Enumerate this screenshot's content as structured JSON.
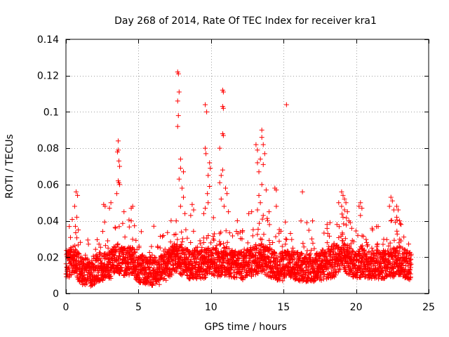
{
  "chart_data": {
    "type": "scatter",
    "title": "Day 268 of 2014, Rate Of TEC Index for receiver kra1",
    "xlabel": "GPS time / hours",
    "ylabel": "ROTI / TECUs",
    "xlim": [
      0,
      25
    ],
    "ylim": [
      0,
      0.14
    ],
    "xticks": [
      0,
      5,
      10,
      15,
      20,
      25
    ],
    "xtick_labels": [
      "0",
      "5",
      "10",
      "15",
      "20",
      "25"
    ],
    "yticks": [
      0,
      0.02,
      0.04,
      0.06,
      0.08,
      0.1,
      0.12,
      0.14
    ],
    "ytick_labels": [
      "0",
      "0.02",
      "0.04",
      "0.06",
      "0.08",
      "0.1",
      "0.12",
      "0.14"
    ],
    "grid": true,
    "marker": "+",
    "series": [
      {
        "name": "ROTI",
        "color": "#ff0000",
        "baseline": [
          [
            0.0,
            0.016
          ],
          [
            0.5,
            0.018
          ],
          [
            1.0,
            0.013
          ],
          [
            1.5,
            0.011
          ],
          [
            2.0,
            0.013
          ],
          [
            2.5,
            0.015
          ],
          [
            3.0,
            0.015
          ],
          [
            3.5,
            0.02
          ],
          [
            4.0,
            0.017
          ],
          [
            4.5,
            0.018
          ],
          [
            5.0,
            0.014
          ],
          [
            5.5,
            0.013
          ],
          [
            6.0,
            0.012
          ],
          [
            6.5,
            0.013
          ],
          [
            7.0,
            0.015
          ],
          [
            7.5,
            0.02
          ],
          [
            8.0,
            0.018
          ],
          [
            8.5,
            0.016
          ],
          [
            9.0,
            0.016
          ],
          [
            9.5,
            0.016
          ],
          [
            10.0,
            0.018
          ],
          [
            10.5,
            0.017
          ],
          [
            11.0,
            0.018
          ],
          [
            11.5,
            0.016
          ],
          [
            12.0,
            0.015
          ],
          [
            12.5,
            0.016
          ],
          [
            13.0,
            0.018
          ],
          [
            13.5,
            0.02
          ],
          [
            14.0,
            0.017
          ],
          [
            14.5,
            0.015
          ],
          [
            15.0,
            0.015
          ],
          [
            15.5,
            0.016
          ],
          [
            16.0,
            0.015
          ],
          [
            16.5,
            0.014
          ],
          [
            17.0,
            0.014
          ],
          [
            17.5,
            0.015
          ],
          [
            18.0,
            0.016
          ],
          [
            18.5,
            0.017
          ],
          [
            19.0,
            0.022
          ],
          [
            19.5,
            0.018
          ],
          [
            20.0,
            0.016
          ],
          [
            20.5,
            0.017
          ],
          [
            21.0,
            0.016
          ],
          [
            21.5,
            0.016
          ],
          [
            22.0,
            0.016
          ],
          [
            22.5,
            0.017
          ],
          [
            23.0,
            0.018
          ],
          [
            23.5,
            0.016
          ],
          [
            23.8,
            0.015
          ]
        ],
        "points": [
          [
            0.7,
            0.056
          ],
          [
            0.8,
            0.054
          ],
          [
            0.6,
            0.048
          ],
          [
            0.75,
            0.042
          ],
          [
            0.65,
            0.037
          ],
          [
            2.6,
            0.049
          ],
          [
            2.7,
            0.048
          ],
          [
            3.1,
            0.05
          ],
          [
            3.0,
            0.047
          ],
          [
            3.6,
            0.084
          ],
          [
            3.6,
            0.079
          ],
          [
            3.55,
            0.078
          ],
          [
            3.65,
            0.073
          ],
          [
            3.7,
            0.07
          ],
          [
            3.6,
            0.062
          ],
          [
            3.65,
            0.061
          ],
          [
            3.7,
            0.06
          ],
          [
            3.5,
            0.055
          ],
          [
            4.0,
            0.045
          ],
          [
            4.5,
            0.04
          ],
          [
            4.6,
            0.048
          ],
          [
            4.5,
            0.047
          ],
          [
            7.7,
            0.122
          ],
          [
            7.75,
            0.121
          ],
          [
            7.8,
            0.111
          ],
          [
            7.7,
            0.106
          ],
          [
            7.75,
            0.098
          ],
          [
            7.7,
            0.092
          ],
          [
            7.9,
            0.074
          ],
          [
            7.9,
            0.069
          ],
          [
            8.1,
            0.067
          ],
          [
            7.8,
            0.063
          ],
          [
            8.0,
            0.058
          ],
          [
            8.1,
            0.053
          ],
          [
            7.9,
            0.048
          ],
          [
            8.2,
            0.044
          ],
          [
            7.6,
            0.04
          ],
          [
            8.7,
            0.049
          ],
          [
            8.8,
            0.046
          ],
          [
            8.6,
            0.043
          ],
          [
            9.6,
            0.104
          ],
          [
            9.7,
            0.1
          ],
          [
            9.6,
            0.08
          ],
          [
            9.65,
            0.077
          ],
          [
            9.9,
            0.072
          ],
          [
            9.95,
            0.069
          ],
          [
            9.8,
            0.065
          ],
          [
            9.9,
            0.059
          ],
          [
            9.75,
            0.055
          ],
          [
            9.8,
            0.05
          ],
          [
            9.6,
            0.047
          ],
          [
            9.5,
            0.044
          ],
          [
            10.8,
            0.112
          ],
          [
            10.85,
            0.111
          ],
          [
            10.8,
            0.103
          ],
          [
            10.85,
            0.102
          ],
          [
            10.8,
            0.088
          ],
          [
            10.85,
            0.087
          ],
          [
            10.6,
            0.08
          ],
          [
            10.8,
            0.068
          ],
          [
            10.7,
            0.065
          ],
          [
            10.6,
            0.061
          ],
          [
            11.0,
            0.058
          ],
          [
            11.1,
            0.055
          ],
          [
            10.7,
            0.052
          ],
          [
            10.9,
            0.048
          ],
          [
            11.2,
            0.045
          ],
          [
            13.1,
            0.082
          ],
          [
            13.2,
            0.079
          ],
          [
            13.5,
            0.09
          ],
          [
            13.5,
            0.086
          ],
          [
            13.6,
            0.082
          ],
          [
            13.7,
            0.077
          ],
          [
            13.4,
            0.074
          ],
          [
            13.2,
            0.072
          ],
          [
            13.6,
            0.071
          ],
          [
            13.3,
            0.067
          ],
          [
            13.5,
            0.06
          ],
          [
            13.8,
            0.057
          ],
          [
            13.3,
            0.054
          ],
          [
            13.4,
            0.05
          ],
          [
            13.2,
            0.046
          ],
          [
            13.6,
            0.043
          ],
          [
            12.8,
            0.045
          ],
          [
            12.6,
            0.044
          ],
          [
            14.0,
            0.045
          ],
          [
            15.2,
            0.104
          ],
          [
            14.4,
            0.058
          ],
          [
            14.5,
            0.057
          ],
          [
            14.5,
            0.048
          ],
          [
            16.3,
            0.056
          ],
          [
            16.2,
            0.04
          ],
          [
            16.6,
            0.039
          ],
          [
            17.0,
            0.04
          ],
          [
            18.0,
            0.038
          ],
          [
            18.2,
            0.039
          ],
          [
            18.8,
            0.05
          ],
          [
            19.0,
            0.056
          ],
          [
            19.1,
            0.054
          ],
          [
            19.2,
            0.052
          ],
          [
            19.3,
            0.05
          ],
          [
            19.0,
            0.048
          ],
          [
            19.2,
            0.046
          ],
          [
            19.4,
            0.045
          ],
          [
            19.1,
            0.042
          ],
          [
            19.5,
            0.04
          ],
          [
            19.6,
            0.039
          ],
          [
            20.2,
            0.048
          ],
          [
            20.3,
            0.05
          ],
          [
            20.4,
            0.047
          ],
          [
            20.3,
            0.043
          ],
          [
            22.4,
            0.053
          ],
          [
            22.5,
            0.051
          ],
          [
            22.3,
            0.048
          ],
          [
            22.6,
            0.046
          ],
          [
            22.8,
            0.048
          ],
          [
            22.9,
            0.046
          ],
          [
            22.8,
            0.042
          ],
          [
            23.0,
            0.04
          ],
          [
            23.1,
            0.038
          ]
        ]
      }
    ]
  }
}
